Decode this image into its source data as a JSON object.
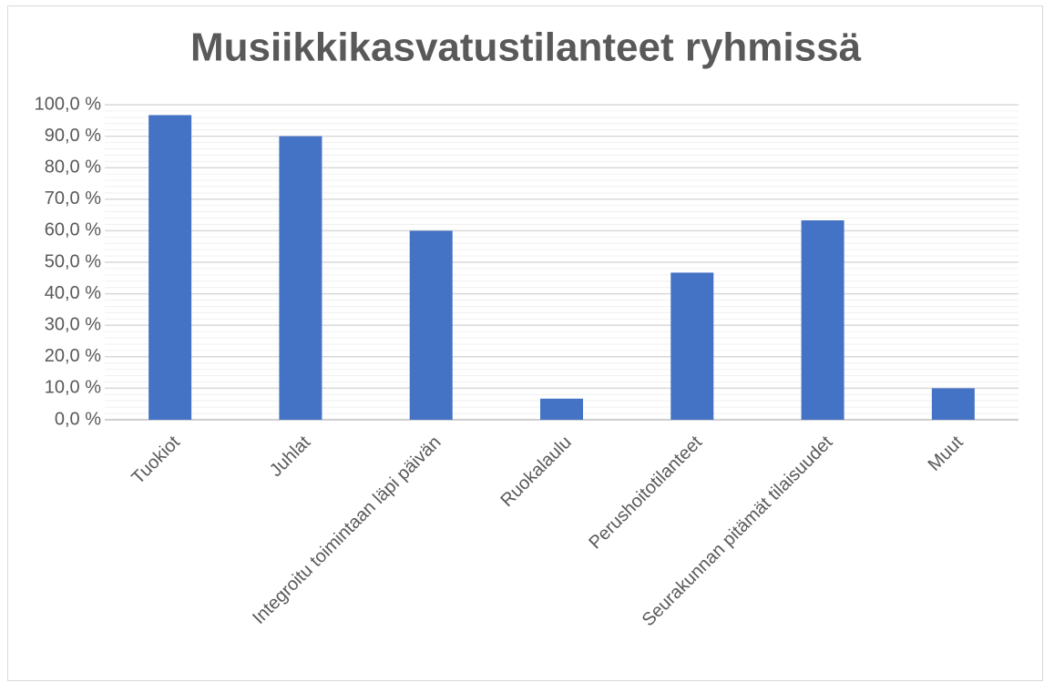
{
  "chart_data": {
    "type": "bar",
    "title": "Musiikkikasvatustilanteet ryhmissä",
    "categories": [
      "Tuokiot",
      "Juhlat",
      "Integroitu toimintaan läpi päivän",
      "Ruokalaulu",
      "Perushoitotilanteet",
      "Seurakunnan pitämät tilaisuudet",
      "Muut"
    ],
    "values": [
      96.7,
      90,
      60,
      6.7,
      46.7,
      63.3,
      10
    ],
    "color": "#4472c4",
    "ylim": [
      0,
      100
    ],
    "yticks": [
      {
        "value": 0,
        "label": "0,0 %"
      },
      {
        "value": 10,
        "label": "10,0 %"
      },
      {
        "value": 20,
        "label": "20,0 %"
      },
      {
        "value": 30,
        "label": "30,0 %"
      },
      {
        "value": 40,
        "label": "40,0 %"
      },
      {
        "value": 50,
        "label": "50,0 %"
      },
      {
        "value": 60,
        "label": "60,0 %"
      },
      {
        "value": 70,
        "label": "70,0 %"
      },
      {
        "value": 80,
        "label": "80,0 %"
      },
      {
        "value": 90,
        "label": "90,0 %"
      },
      {
        "value": 100,
        "label": "100,0 %"
      }
    ],
    "grid": true,
    "minor_grid": true
  }
}
